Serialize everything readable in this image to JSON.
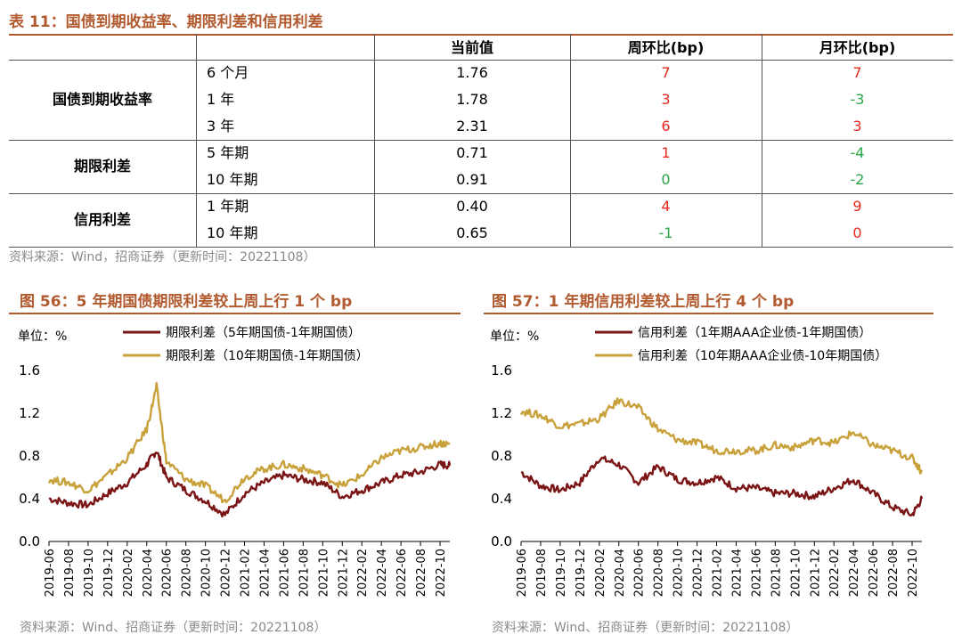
{
  "table": {
    "title": "表 11：国债到期收益率、期限利差和信用利差",
    "headers": [
      "",
      "",
      "当前值",
      "周环比(bp)",
      "月环比(bp)"
    ],
    "groups": [
      {
        "name": "国债到期收益率",
        "rows": [
          {
            "label": "6 个月",
            "value": "1.76",
            "wow": "7",
            "wow_color": "red",
            "mom": "7",
            "mom_color": "red"
          },
          {
            "label": "1 年",
            "value": "1.78",
            "wow": "3",
            "wow_color": "red",
            "mom": "-3",
            "mom_color": "green"
          },
          {
            "label": "3 年",
            "value": "2.31",
            "wow": "6",
            "wow_color": "red",
            "mom": "3",
            "mom_color": "red"
          }
        ]
      },
      {
        "name": "期限利差",
        "rows": [
          {
            "label": "5 年期",
            "value": "0.71",
            "wow": "1",
            "wow_color": "red",
            "mom": "-4",
            "mom_color": "green"
          },
          {
            "label": "10 年期",
            "value": "0.91",
            "wow": "0",
            "wow_color": "green",
            "mom": "-2",
            "mom_color": "green"
          }
        ]
      },
      {
        "name": "信用利差",
        "rows": [
          {
            "label": "1 年期",
            "value": "0.40",
            "wow": "4",
            "wow_color": "red",
            "mom": "9",
            "mom_color": "red"
          },
          {
            "label": "10 年期",
            "value": "0.65",
            "wow": "-1",
            "wow_color": "green",
            "mom": "0",
            "mom_color": "red"
          }
        ]
      }
    ],
    "source": "资料来源：Wind，招商证券（更新时间：20221108）"
  },
  "colors": {
    "accent": "#b25a2f",
    "dark_series": "#7b1515",
    "gold_series": "#c9a13b",
    "red": "#e8281e",
    "green": "#28a745"
  },
  "chart_data": [
    {
      "type": "line",
      "title": "图 56：5 年期国债期限利差较上周上行 1 个 bp",
      "unit": "单位：%",
      "ylim": [
        0,
        1.6
      ],
      "yticks": [
        "1.6",
        "1.2",
        "0.8",
        "0.4",
        "0.0"
      ],
      "xticks": [
        "2019-06",
        "2019-08",
        "2019-10",
        "2019-12",
        "2020-02",
        "2020-04",
        "2020-06",
        "2020-08",
        "2020-10",
        "2020-12",
        "2021-02",
        "2021-04",
        "2021-06",
        "2021-08",
        "2021-10",
        "2021-12",
        "2022-02",
        "2022-04",
        "2022-06",
        "2022-08",
        "2022-10"
      ],
      "x": [
        "2019-06",
        "2019-08",
        "2019-10",
        "2019-12",
        "2020-02",
        "2020-04",
        "2020-05",
        "2020-06",
        "2020-08",
        "2020-10",
        "2020-12",
        "2021-02",
        "2021-04",
        "2021-06",
        "2021-08",
        "2021-10",
        "2021-12",
        "2022-02",
        "2022-04",
        "2022-06",
        "2022-08",
        "2022-10",
        "2022-11"
      ],
      "series": [
        {
          "name": "期限利差（5年期国债-1年期国债）",
          "color": "#7b1515",
          "values": [
            0.4,
            0.36,
            0.34,
            0.45,
            0.55,
            0.72,
            0.85,
            0.6,
            0.48,
            0.38,
            0.25,
            0.45,
            0.55,
            0.62,
            0.58,
            0.55,
            0.42,
            0.48,
            0.55,
            0.62,
            0.65,
            0.72,
            0.71
          ]
        },
        {
          "name": "期限利差（10年期国债-1年期国债）",
          "color": "#c9a13b",
          "values": [
            0.58,
            0.55,
            0.48,
            0.62,
            0.78,
            1.05,
            1.45,
            0.75,
            0.58,
            0.52,
            0.38,
            0.6,
            0.68,
            0.72,
            0.68,
            0.62,
            0.52,
            0.62,
            0.78,
            0.85,
            0.88,
            0.92,
            0.91
          ]
        }
      ],
      "source": "资料来源：Wind、招商证券（更新时间：20221108）"
    },
    {
      "type": "line",
      "title": "图 57：1 年期信用利差较上周上行 4 个 bp",
      "unit": "单位：%",
      "ylim": [
        0,
        1.6
      ],
      "yticks": [
        "1.6",
        "1.2",
        "0.8",
        "0.4",
        "0.0"
      ],
      "xticks": [
        "2019-06",
        "2019-08",
        "2019-10",
        "2019-12",
        "2020-02",
        "2020-04",
        "2020-06",
        "2020-08",
        "2020-10",
        "2020-12",
        "2021-02",
        "2021-04",
        "2021-06",
        "2021-08",
        "2021-10",
        "2021-12",
        "2022-02",
        "2022-04",
        "2022-06",
        "2022-08",
        "2022-10"
      ],
      "x": [
        "2019-06",
        "2019-08",
        "2019-10",
        "2019-12",
        "2020-02",
        "2020-04",
        "2020-06",
        "2020-08",
        "2020-10",
        "2020-12",
        "2021-02",
        "2021-04",
        "2021-06",
        "2021-08",
        "2021-10",
        "2021-12",
        "2022-02",
        "2022-04",
        "2022-06",
        "2022-08",
        "2022-10",
        "2022-11"
      ],
      "series": [
        {
          "name": "信用利差（1年期AAA企业债-1年期国债）",
          "color": "#7b1515",
          "values": [
            0.65,
            0.52,
            0.48,
            0.55,
            0.78,
            0.72,
            0.55,
            0.7,
            0.58,
            0.55,
            0.6,
            0.5,
            0.5,
            0.45,
            0.45,
            0.42,
            0.5,
            0.58,
            0.45,
            0.32,
            0.25,
            0.4
          ]
        },
        {
          "name": "信用利差（10年期AAA企业债-10年期国债）",
          "color": "#c9a13b",
          "values": [
            1.22,
            1.18,
            1.08,
            1.1,
            1.15,
            1.32,
            1.25,
            1.05,
            0.95,
            0.92,
            0.85,
            0.85,
            0.85,
            0.9,
            0.88,
            0.95,
            0.92,
            1.02,
            0.9,
            0.85,
            0.78,
            0.65
          ]
        }
      ],
      "source": "资料来源：Wind、招商证券（更新时间：20221108）"
    }
  ]
}
